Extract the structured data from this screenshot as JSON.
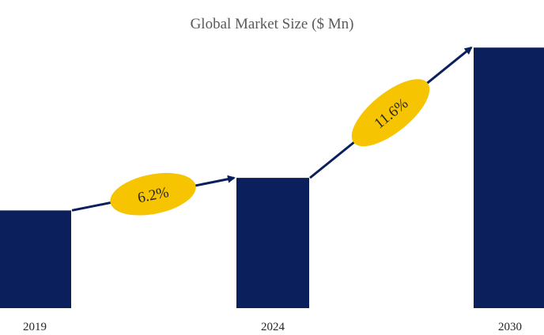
{
  "chart_data": {
    "type": "bar",
    "title": "Global Market Size ($ Mn)",
    "categories": [
      "2019",
      "2024",
      "2030"
    ],
    "values": [
      3,
      4,
      8
    ],
    "ylim": [
      0,
      9
    ],
    "colors": {
      "bar": "#0b1f5c",
      "arrow": "#0b1f5c",
      "badge": "#f6c400"
    },
    "annotations": [
      {
        "from": "2019",
        "to": "2024",
        "label": "6.2%"
      },
      {
        "from": "2024",
        "to": "2030",
        "label": "11.6%"
      }
    ]
  }
}
